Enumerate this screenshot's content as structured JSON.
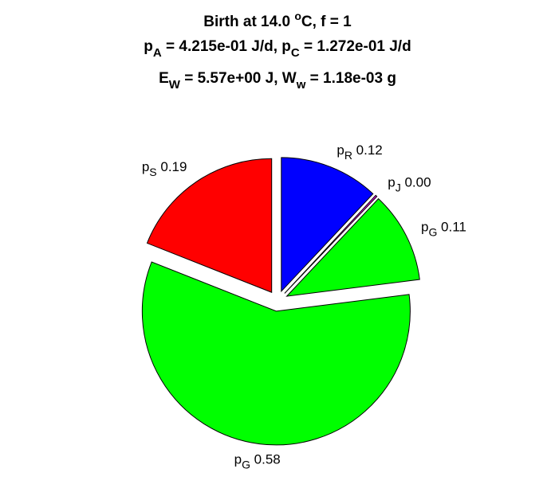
{
  "chart_data": {
    "type": "pie",
    "title": {
      "line1": {
        "pre": "Birth at 14.0 ",
        "sup": "o",
        "post": "C, f = 1"
      },
      "line2": {
        "a_sym": "p",
        "a_sub": "A",
        "a_val": " = 4.215e-01 J/d, ",
        "c_sym": "p",
        "c_sub": "C",
        "c_val": " = 1.272e-01 J/d"
      },
      "line3": {
        "e_sym": "E",
        "e_sub": "W",
        "e_val": " = 5.57e+00 J, ",
        "w_sym": "W",
        "w_sub": "w",
        "w_val": " = 1.18e-03 g"
      }
    },
    "slices": [
      {
        "sym": "p",
        "sub": "R",
        "value": 0.12,
        "label": "0.12",
        "color": "#0000ff",
        "exploded": true
      },
      {
        "sym": "p",
        "sub": "J",
        "value": 0.0,
        "label": "0.00",
        "color": "#ff00ff",
        "exploded": true
      },
      {
        "sym": "p",
        "sub": "G",
        "value": 0.11,
        "label": "0.11",
        "color": "#00ff00",
        "exploded": true
      },
      {
        "sym": "p",
        "sub": "G",
        "value": 0.58,
        "label": "0.58",
        "color": "#00ff00",
        "exploded": true
      },
      {
        "sym": "p",
        "sub": "S",
        "value": 0.19,
        "label": "0.19",
        "color": "#ff0000",
        "exploded": true
      }
    ],
    "start_angle_deg": 90,
    "direction": "clockwise",
    "legend": "none",
    "grid": false
  }
}
